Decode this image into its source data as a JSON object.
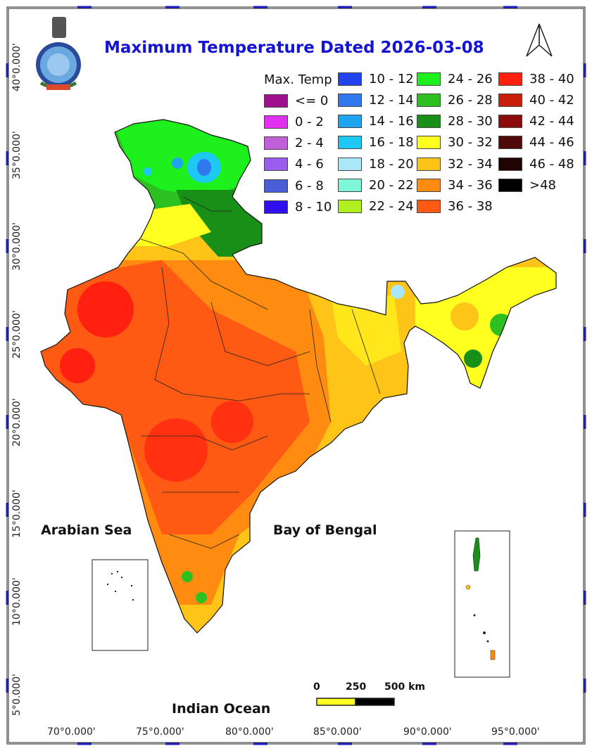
{
  "title": "Maximum Temperature Dated 2026-03-08",
  "legend": {
    "title": "Max. Temp",
    "items": [
      {
        "label": "<= 0",
        "color": "#a0108c"
      },
      {
        "label": "0 - 2",
        "color": "#e030f0"
      },
      {
        "label": "2 - 4",
        "color": "#c060d8"
      },
      {
        "label": "4 - 6",
        "color": "#9b5cf0"
      },
      {
        "label": "6 - 8",
        "color": "#4a5ed8"
      },
      {
        "label": "8 - 10",
        "color": "#3010f0"
      },
      {
        "label": "10 - 12",
        "color": "#2244ee"
      },
      {
        "label": "12 - 14",
        "color": "#2f78f0"
      },
      {
        "label": "14 - 16",
        "color": "#1ea4f0"
      },
      {
        "label": "16 - 18",
        "color": "#1ec8f5"
      },
      {
        "label": "18 - 20",
        "color": "#a8e8f8"
      },
      {
        "label": "20 - 22",
        "color": "#7cf8d8"
      },
      {
        "label": "22 - 24",
        "color": "#b0f020"
      },
      {
        "label": "24 - 26",
        "color": "#1ef01e"
      },
      {
        "label": "26 - 28",
        "color": "#2cc020"
      },
      {
        "label": "28 - 30",
        "color": "#189018"
      },
      {
        "label": "30 - 32",
        "color": "#ffff20"
      },
      {
        "label": "32 - 34",
        "color": "#ffc418"
      },
      {
        "label": "34 - 36",
        "color": "#ff8c10"
      },
      {
        "label": "36 - 38",
        "color": "#ff5a14"
      },
      {
        "label": "38 - 40",
        "color": "#ff2010"
      },
      {
        "label": "40 - 42",
        "color": "#c81e0a"
      },
      {
        "label": "42 - 44",
        "color": "#8c0a0a"
      },
      {
        "label": "44 - 46",
        "color": "#500808"
      },
      {
        "label": "46 - 48",
        "color": "#200404"
      },
      {
        "label": ">48",
        "color": "#000000"
      }
    ]
  },
  "labels": {
    "arabian_sea": "Arabian Sea",
    "bay_of_bengal": "Bay of Bengal",
    "indian_ocean": "Indian Ocean"
  },
  "latitude_ticks": [
    "40°0.000'",
    "35°0.000'",
    "30°0.000'",
    "25°0.000'",
    "20°0.000'",
    "15°0.000'",
    "10°0.000'",
    "5°0.000'"
  ],
  "longitude_ticks": [
    "70°0.000'",
    "75°0.000'",
    "80°0.000'",
    "85°0.000'",
    "90°0.000'",
    "95°0.000'"
  ],
  "scale_bar": {
    "labels": [
      "0",
      "250",
      "500 km"
    ]
  },
  "colors": {
    "frame_accent": "#2020c0",
    "title": "#1414d2"
  },
  "icons": [
    "imd-logo-icon",
    "north-arrow-icon"
  ]
}
